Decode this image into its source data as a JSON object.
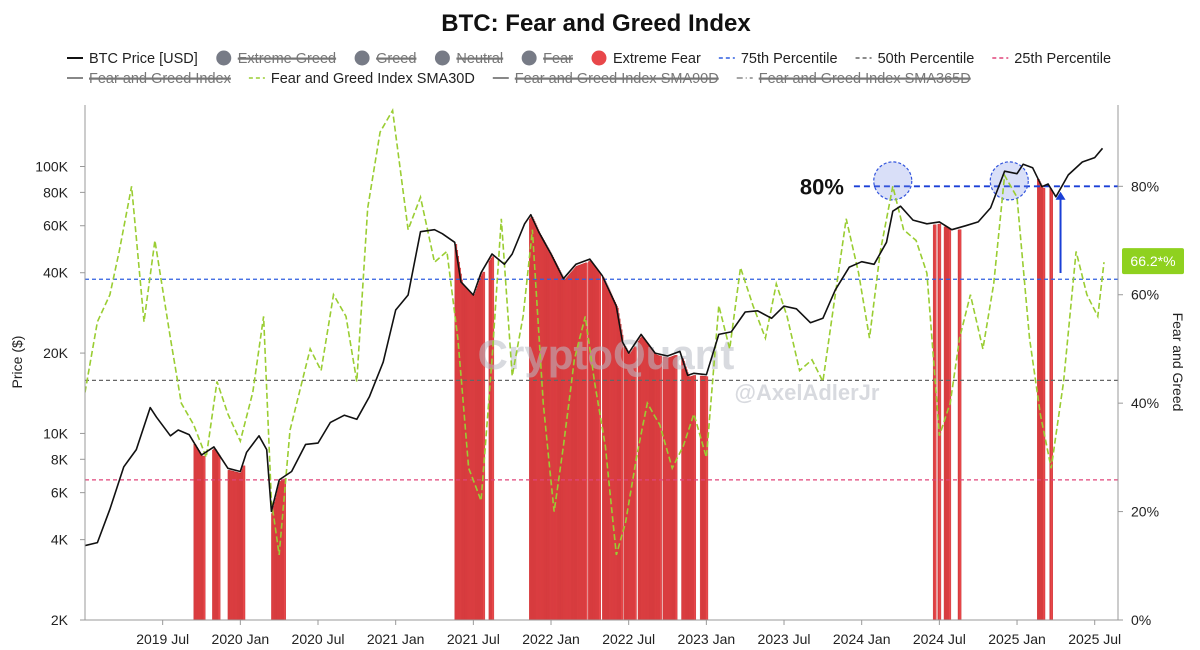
{
  "chart_data": {
    "type": "line",
    "title": "BTC: Fear and Greed Index",
    "ylabel_left": "Price ($)",
    "ylabel_right": "Fear and Greed",
    "y_left_scale": "log",
    "y_left_range": [
      2000,
      170000
    ],
    "y_left_ticks": [
      {
        "value": 2000,
        "label": "2K"
      },
      {
        "value": 4000,
        "label": "4K"
      },
      {
        "value": 6000,
        "label": "6K"
      },
      {
        "value": 8000,
        "label": "8K"
      },
      {
        "value": 10000,
        "label": "10K"
      },
      {
        "value": 20000,
        "label": "20K"
      },
      {
        "value": 40000,
        "label": "40K"
      },
      {
        "value": 60000,
        "label": "60K"
      },
      {
        "value": 80000,
        "label": "80K"
      },
      {
        "value": 100000,
        "label": "100K"
      }
    ],
    "y_right_range": [
      0,
      95
    ],
    "y_right_ticks": [
      {
        "value": 0,
        "label": "0%"
      },
      {
        "value": 20,
        "label": "20%"
      },
      {
        "value": 40,
        "label": "40%"
      },
      {
        "value": 60,
        "label": "60%"
      },
      {
        "value": 80,
        "label": "80%"
      }
    ],
    "x_range": [
      2019.0,
      2025.65
    ],
    "x_ticks": [
      {
        "value": 2019.5,
        "label": "2019 Jul"
      },
      {
        "value": 2020.0,
        "label": "2020 Jan"
      },
      {
        "value": 2020.5,
        "label": "2020 Jul"
      },
      {
        "value": 2021.0,
        "label": "2021 Jan"
      },
      {
        "value": 2021.5,
        "label": "2021 Jul"
      },
      {
        "value": 2022.0,
        "label": "2022 Jan"
      },
      {
        "value": 2022.5,
        "label": "2022 Jul"
      },
      {
        "value": 2023.0,
        "label": "2023 Jan"
      },
      {
        "value": 2023.5,
        "label": "2023 Jul"
      },
      {
        "value": 2024.0,
        "label": "2024 Jan"
      },
      {
        "value": 2024.5,
        "label": "2024 Jul"
      },
      {
        "value": 2025.0,
        "label": "2025 Jan"
      },
      {
        "value": 2025.5,
        "label": "2025 Jul"
      }
    ],
    "legend": {
      "row1": [
        {
          "label": "BTC Price [USD]",
          "kind": "line",
          "color": "#111111",
          "active": true
        },
        {
          "label": "Extreme Greed",
          "kind": "dot",
          "color": "#777b86",
          "active": false
        },
        {
          "label": "Greed",
          "kind": "dot",
          "color": "#777b86",
          "active": false
        },
        {
          "label": "Neutral",
          "kind": "dot",
          "color": "#777b86",
          "active": false
        },
        {
          "label": "Fear",
          "kind": "dot",
          "color": "#777b86",
          "active": false
        },
        {
          "label": "Extreme Fear",
          "kind": "dot",
          "color": "#e8474a",
          "active": true
        },
        {
          "label": "75th Percentile",
          "kind": "dash",
          "color": "#2f5fe0",
          "active": true
        },
        {
          "label": "50th Percentile",
          "kind": "dash",
          "color": "#666666",
          "active": true
        },
        {
          "label": "25th Percentile",
          "kind": "dash",
          "color": "#e0457a",
          "active": true
        }
      ],
      "row2": [
        {
          "label": "Fear and Greed Index",
          "kind": "line",
          "color": "#888888",
          "active": false
        },
        {
          "label": "Fear and Greed Index SMA30D",
          "kind": "dash",
          "color": "#9acd32",
          "active": true
        },
        {
          "label": "Fear and Greed Index SMA90D",
          "kind": "line",
          "color": "#888888",
          "active": false
        },
        {
          "label": "Fear and Greed Index SMA365D",
          "kind": "dashdot",
          "color": "#888888",
          "active": false
        }
      ]
    },
    "percentiles": [
      {
        "name": "75th Percentile",
        "price": 37800,
        "color": "#2f5fe0"
      },
      {
        "name": "50th Percentile",
        "price": 15800,
        "color": "#666666"
      },
      {
        "name": "25th Percentile",
        "price": 6700,
        "color": "#e0457a"
      }
    ],
    "threshold_line": {
      "value": 80,
      "label": "80%",
      "x_start": 2023.95,
      "color": "#1a3fd6"
    },
    "current_badge": {
      "value": 66.2,
      "label": "66.2*%",
      "color": "#8fd11f"
    },
    "highlight_circles": [
      {
        "x": 2024.2,
        "y": 81
      },
      {
        "x": 2024.95,
        "y": 81
      }
    ],
    "arrow": {
      "x": 2025.28,
      "from": 64,
      "to": 79,
      "color": "#1a3fd6"
    },
    "watermarks": [
      "CryptoQuant",
      "@AxelAdlerJr"
    ],
    "series": [
      {
        "name": "BTC Price [USD]",
        "axis": "left",
        "color": "#111111",
        "x": [
          2019.0,
          2019.08,
          2019.16,
          2019.25,
          2019.33,
          2019.42,
          2019.46,
          2019.55,
          2019.6,
          2019.67,
          2019.75,
          2019.83,
          2019.92,
          2020.0,
          2020.04,
          2020.12,
          2020.17,
          2020.2,
          2020.25,
          2020.33,
          2020.42,
          2020.5,
          2020.58,
          2020.67,
          2020.75,
          2020.83,
          2020.92,
          2021.0,
          2021.08,
          2021.16,
          2021.25,
          2021.3,
          2021.38,
          2021.42,
          2021.5,
          2021.55,
          2021.62,
          2021.7,
          2021.75,
          2021.83,
          2021.87,
          2021.92,
          2022.0,
          2022.08,
          2022.16,
          2022.25,
          2022.33,
          2022.42,
          2022.46,
          2022.5,
          2022.58,
          2022.67,
          2022.75,
          2022.83,
          2022.88,
          2022.92,
          2023.0,
          2023.08,
          2023.16,
          2023.25,
          2023.33,
          2023.42,
          2023.5,
          2023.58,
          2023.67,
          2023.75,
          2023.83,
          2023.92,
          2024.0,
          2024.08,
          2024.16,
          2024.2,
          2024.25,
          2024.33,
          2024.42,
          2024.5,
          2024.58,
          2024.67,
          2024.75,
          2024.83,
          2024.92,
          2025.0,
          2025.04,
          2025.1,
          2025.16,
          2025.2,
          2025.25,
          2025.33,
          2025.42,
          2025.5,
          2025.55
        ],
        "y": [
          3800,
          3900,
          5200,
          7500,
          8700,
          12500,
          11500,
          9800,
          10300,
          9900,
          8300,
          8900,
          7400,
          7200,
          8500,
          9800,
          8700,
          5100,
          6700,
          7200,
          9100,
          9200,
          11000,
          11700,
          11300,
          13700,
          18500,
          29000,
          33000,
          57000,
          58000,
          56000,
          52000,
          37000,
          33000,
          40000,
          47000,
          43000,
          47000,
          61000,
          66000,
          57000,
          47000,
          38000,
          43000,
          45000,
          39000,
          30000,
          22000,
          20000,
          23500,
          20000,
          19500,
          20300,
          16500,
          16800,
          16600,
          23500,
          24000,
          28500,
          28800,
          27000,
          30000,
          29300,
          26000,
          27000,
          34500,
          42000,
          44000,
          43000,
          52000,
          68000,
          71000,
          63000,
          61000,
          62000,
          58000,
          60000,
          62000,
          70000,
          96000,
          94000,
          102000,
          99000,
          84000,
          86000,
          77000,
          93000,
          104000,
          108000,
          117000
        ]
      },
      {
        "name": "Fear and Greed Index SMA30D",
        "axis": "right",
        "color": "#9acd32",
        "x": [
          2019.0,
          2019.08,
          2019.16,
          2019.22,
          2019.3,
          2019.38,
          2019.45,
          2019.55,
          2019.62,
          2019.7,
          2019.78,
          2019.85,
          2019.92,
          2020.0,
          2020.08,
          2020.15,
          2020.2,
          2020.25,
          2020.32,
          2020.38,
          2020.45,
          2020.52,
          2020.6,
          2020.68,
          2020.75,
          2020.82,
          2020.9,
          2020.98,
          2021.08,
          2021.16,
          2021.25,
          2021.33,
          2021.4,
          2021.47,
          2021.55,
          2021.62,
          2021.68,
          2021.75,
          2021.82,
          2021.88,
          2021.95,
          2022.02,
          2022.08,
          2022.15,
          2022.22,
          2022.28,
          2022.35,
          2022.42,
          2022.48,
          2022.55,
          2022.62,
          2022.7,
          2022.78,
          2022.85,
          2022.92,
          2023.0,
          2023.08,
          2023.15,
          2023.22,
          2023.3,
          2023.38,
          2023.45,
          2023.52,
          2023.6,
          2023.68,
          2023.75,
          2023.82,
          2023.9,
          2023.98,
          2024.05,
          2024.12,
          2024.2,
          2024.27,
          2024.35,
          2024.42,
          2024.5,
          2024.57,
          2024.63,
          2024.7,
          2024.78,
          2024.85,
          2024.92,
          2025.0,
          2025.08,
          2025.15,
          2025.22,
          2025.3,
          2025.38,
          2025.45,
          2025.52,
          2025.56
        ],
        "y": [
          42,
          55,
          60,
          68,
          80,
          55,
          70,
          52,
          40,
          36,
          30,
          44,
          38,
          33,
          42,
          56,
          22,
          12,
          35,
          42,
          50,
          46,
          60,
          56,
          44,
          76,
          90,
          94,
          72,
          78,
          66,
          68,
          52,
          28,
          22,
          48,
          74,
          45,
          56,
          72,
          40,
          20,
          32,
          48,
          56,
          44,
          32,
          12,
          18,
          30,
          40,
          36,
          28,
          32,
          38,
          30,
          58,
          50,
          65,
          58,
          52,
          62,
          56,
          46,
          48,
          44,
          58,
          74,
          64,
          52,
          68,
          80,
          72,
          70,
          64,
          34,
          40,
          52,
          60,
          50,
          62,
          82,
          78,
          52,
          38,
          28,
          44,
          68,
          60,
          56,
          66
        ]
      }
    ],
    "extreme_fear_periods": [
      [
        2019.7,
        2019.76
      ],
      [
        2019.82,
        2019.86
      ],
      [
        2019.92,
        2020.02
      ],
      [
        2020.2,
        2020.28
      ],
      [
        2021.38,
        2021.56
      ],
      [
        2021.6,
        2021.62
      ],
      [
        2021.86,
        2022.22
      ],
      [
        2022.24,
        2022.31
      ],
      [
        2022.33,
        2022.45
      ],
      [
        2022.47,
        2022.54
      ],
      [
        2022.56,
        2022.7
      ],
      [
        2022.72,
        2022.8
      ],
      [
        2022.84,
        2022.92
      ],
      [
        2022.96,
        2023.0
      ],
      [
        2024.46,
        2024.47
      ],
      [
        2024.49,
        2024.5
      ],
      [
        2024.53,
        2024.56
      ],
      [
        2024.62,
        2024.63
      ],
      [
        2025.13,
        2025.17
      ],
      [
        2025.21,
        2025.22
      ]
    ]
  }
}
